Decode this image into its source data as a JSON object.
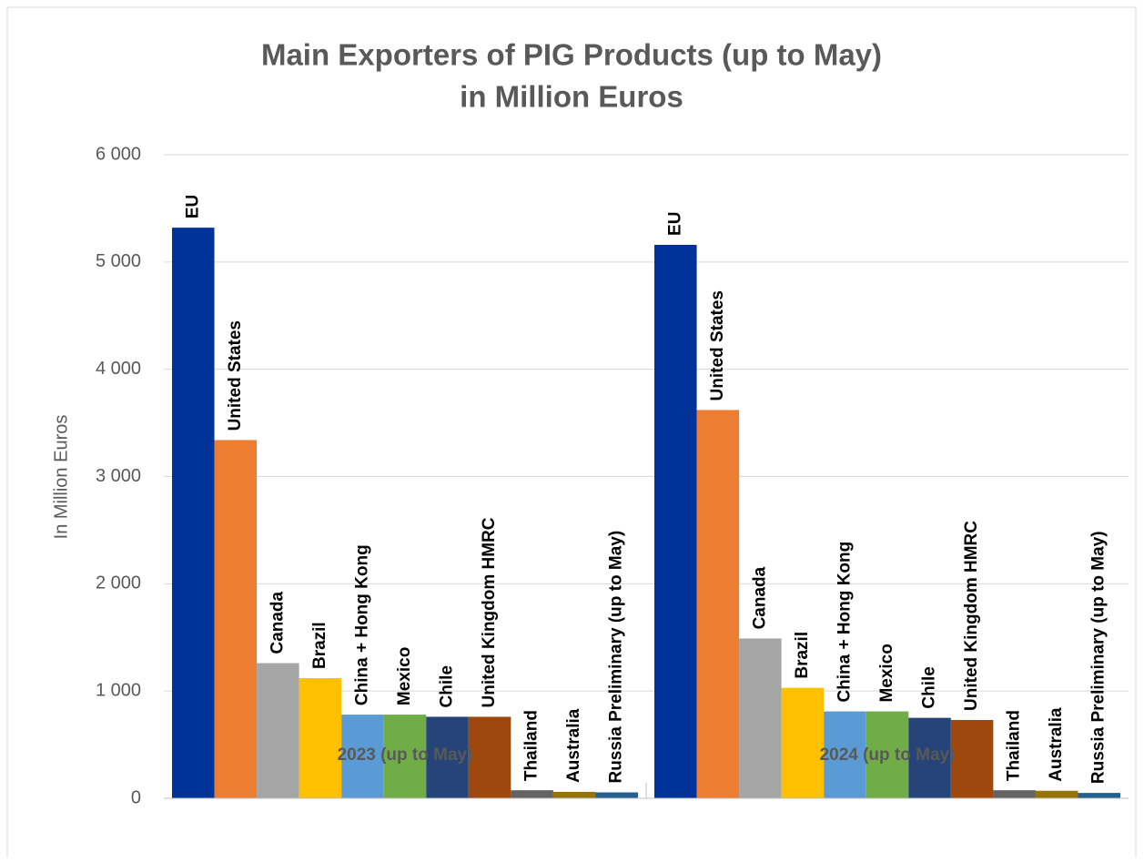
{
  "chart_data": {
    "type": "bar",
    "title": [
      "Main Exporters of PIG Products (up to May)",
      "in Million Euros"
    ],
    "y_axis_label": "In Million Euros",
    "categories": [
      "2023 (up to May)",
      "2024 (up to May)"
    ],
    "series": [
      {
        "name": "EU",
        "color": "#003399",
        "values": [
          5320,
          5160
        ]
      },
      {
        "name": "United States",
        "color": "#ed7d31",
        "values": [
          3340,
          3620
        ]
      },
      {
        "name": "Canada",
        "color": "#a5a5a5",
        "values": [
          1260,
          1490
        ]
      },
      {
        "name": "Brazil",
        "color": "#ffc000",
        "values": [
          1120,
          1030
        ]
      },
      {
        "name": "China + Hong Kong",
        "color": "#5b9bd5",
        "values": [
          780,
          810
        ]
      },
      {
        "name": "Mexico",
        "color": "#70ad47",
        "values": [
          780,
          810
        ]
      },
      {
        "name": "Chile",
        "color": "#264478",
        "values": [
          760,
          750
        ]
      },
      {
        "name": "United Kingdom HMRC",
        "color": "#9e480e",
        "values": [
          760,
          730
        ]
      },
      {
        "name": "Thailand",
        "color": "#636363",
        "values": [
          75,
          75
        ]
      },
      {
        "name": "Australia",
        "color": "#997300",
        "values": [
          60,
          70
        ]
      },
      {
        "name": "Russia Preliminary (up to May)",
        "color": "#255e91",
        "values": [
          55,
          50
        ]
      }
    ],
    "ylim": [
      0,
      6000
    ],
    "yticks": [
      0,
      {
        "value": 1000,
        "label": "1 000"
      },
      {
        "value": 2000,
        "label": "2 000"
      },
      {
        "value": 3000,
        "label": "3 000"
      },
      {
        "value": 4000,
        "label": "4 000"
      },
      {
        "value": 5000,
        "label": "5 000"
      },
      {
        "value": 6000,
        "label": "6 000"
      }
    ],
    "grid": true
  }
}
